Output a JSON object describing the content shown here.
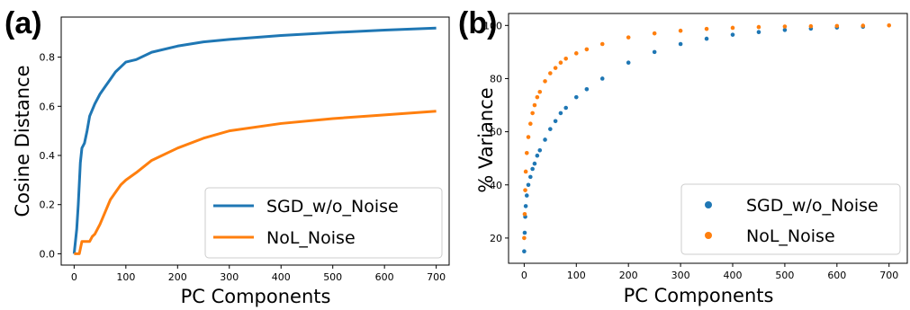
{
  "chart_data": [
    {
      "type": "line",
      "panel_label": "(a)",
      "xlabel": "PC Components",
      "ylabel": "Cosine Distance",
      "xlim": [
        -25,
        725
      ],
      "ylim": [
        -0.046,
        0.963
      ],
      "xticks": [
        0,
        100,
        200,
        300,
        400,
        500,
        600,
        700
      ],
      "yticks": [
        0.0,
        0.2,
        0.4,
        0.6,
        0.8
      ],
      "ytick_labels": [
        "0.0",
        "0.2",
        "0.4",
        "0.6",
        "0.8"
      ],
      "grid": false,
      "legend": "bottom-right",
      "series": [
        {
          "name": "SGD_w/o_Noise",
          "color": "#1f77b4",
          "x": [
            0,
            5,
            8,
            12,
            15,
            20,
            25,
            30,
            40,
            50,
            60,
            70,
            80,
            90,
            100,
            120,
            150,
            200,
            250,
            300,
            400,
            500,
            600,
            700
          ],
          "y": [
            0.0,
            0.1,
            0.2,
            0.37,
            0.43,
            0.45,
            0.5,
            0.56,
            0.61,
            0.65,
            0.68,
            0.71,
            0.74,
            0.76,
            0.78,
            0.79,
            0.82,
            0.845,
            0.862,
            0.872,
            0.888,
            0.9,
            0.91,
            0.918
          ]
        },
        {
          "name": "NoL_Noise",
          "color": "#ff7f0e",
          "x": [
            0,
            10,
            15,
            20,
            25,
            30,
            35,
            40,
            50,
            60,
            70,
            80,
            90,
            100,
            120,
            150,
            200,
            250,
            300,
            400,
            500,
            600,
            700
          ],
          "y": [
            0.0,
            0.0,
            0.05,
            0.05,
            0.05,
            0.05,
            0.07,
            0.08,
            0.12,
            0.17,
            0.22,
            0.25,
            0.28,
            0.3,
            0.33,
            0.38,
            0.43,
            0.47,
            0.5,
            0.53,
            0.55,
            0.565,
            0.58
          ]
        }
      ]
    },
    {
      "type": "scatter",
      "panel_label": "(b)",
      "xlabel": "PC Components",
      "ylabel": "% Variance",
      "xlim": [
        -30,
        735
      ],
      "ylim": [
        10.5,
        104.5
      ],
      "xticks": [
        0,
        100,
        200,
        300,
        400,
        500,
        600,
        700
      ],
      "yticks": [
        20,
        40,
        60,
        80,
        100
      ],
      "ytick_labels": [
        "20",
        "40",
        "60",
        "80",
        "100"
      ],
      "grid": false,
      "legend": "bottom-right",
      "series": [
        {
          "name": "SGD_w/o_Noise",
          "color": "#1f77b4",
          "x": [
            0,
            1,
            2,
            3,
            5,
            8,
            12,
            16,
            20,
            25,
            30,
            40,
            50,
            60,
            70,
            80,
            100,
            120,
            150,
            200,
            250,
            300,
            350,
            400,
            450,
            500,
            550,
            600,
            650
          ],
          "y": [
            15,
            22,
            28,
            32,
            36,
            40,
            43,
            46,
            48,
            51,
            53,
            57,
            61,
            64,
            67,
            69,
            73,
            76,
            80,
            86,
            90,
            93,
            95,
            96.5,
            97.5,
            98.3,
            98.8,
            99.2,
            99.5
          ]
        },
        {
          "name": "NoL_Noise",
          "color": "#ff7f0e",
          "x": [
            0,
            1,
            2,
            3,
            5,
            8,
            12,
            16,
            20,
            25,
            30,
            40,
            50,
            60,
            70,
            80,
            100,
            120,
            150,
            200,
            250,
            300,
            350,
            400,
            450,
            500,
            550,
            600,
            650,
            700
          ],
          "y": [
            20,
            29,
            38,
            45,
            52,
            58,
            63,
            67,
            70,
            73,
            75,
            79,
            82,
            84,
            86,
            87.5,
            89.5,
            91,
            93,
            95.5,
            97,
            98,
            98.7,
            99.1,
            99.4,
            99.6,
            99.7,
            99.8,
            99.9,
            100
          ]
        }
      ]
    }
  ]
}
